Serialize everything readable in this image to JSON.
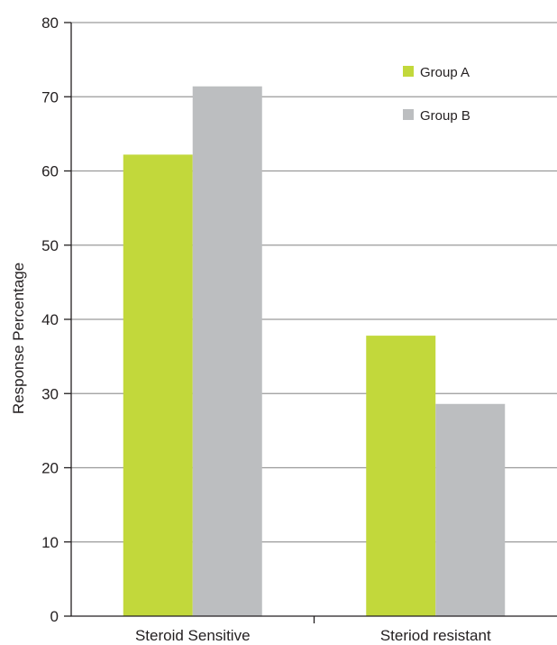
{
  "chart_data": {
    "type": "bar",
    "categories": [
      "Steroid Sensitive",
      "Steriod resistant"
    ],
    "series": [
      {
        "name": "Group A",
        "values": [
          62.2,
          37.8
        ],
        "color": "#c2d83b"
      },
      {
        "name": "Group B",
        "values": [
          71.4,
          28.6
        ],
        "color": "#bcbec0"
      }
    ],
    "ylabel": "Response Percentage",
    "xlabel": "",
    "ylim": [
      0,
      80
    ],
    "yticks": [
      "0",
      "10",
      "20",
      "30",
      "40",
      "50",
      "60",
      "70",
      "80"
    ],
    "grid": true,
    "legend": {
      "position": "top-right"
    }
  }
}
